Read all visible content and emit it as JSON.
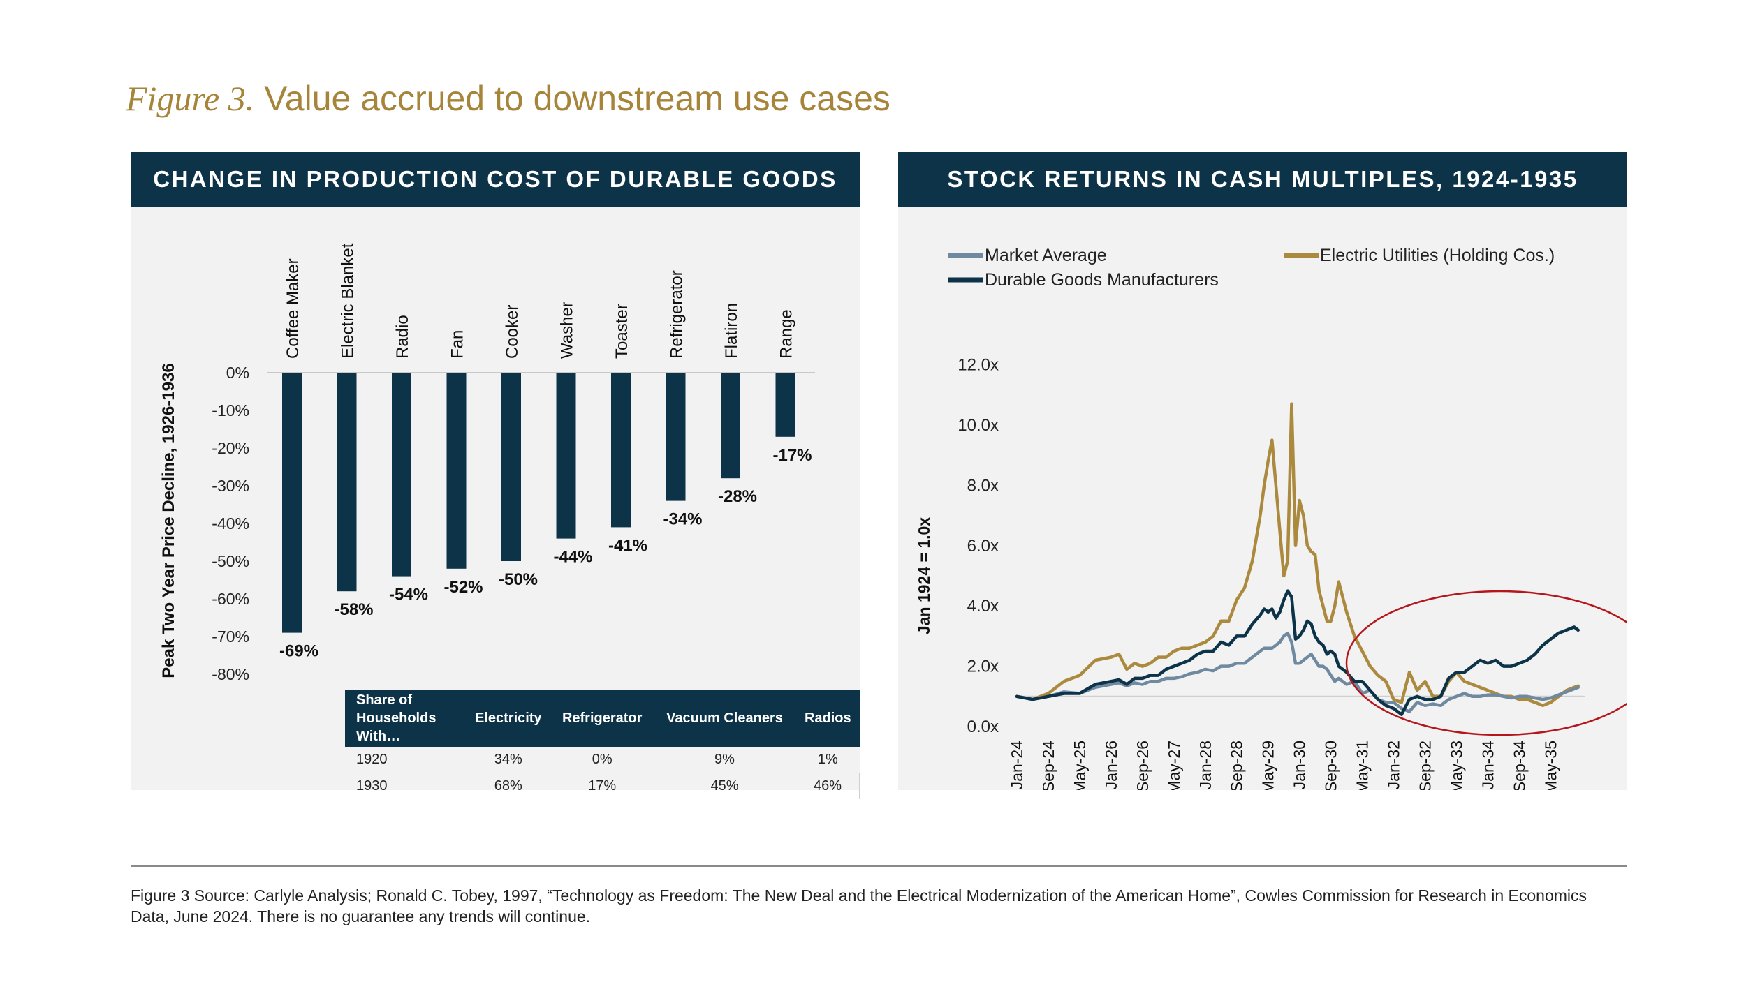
{
  "figure": {
    "number": "Figure 3.",
    "title": "Value accrued to downstream use cases"
  },
  "left_panel": {
    "header": "CHANGE IN PRODUCTION COST OF DURABLE GOODS"
  },
  "right_panel": {
    "header": "STOCK RETURNS IN CASH MULTIPLES, 1924-1935"
  },
  "chart_data": [
    {
      "type": "bar",
      "title": "CHANGE IN PRODUCTION COST OF DURABLE GOODS",
      "ylabel": "Peak Two Year Price Decline, 1926-1936",
      "xlabel": "",
      "categories": [
        "Coffee Maker",
        "Electric Blanket",
        "Radio",
        "Fan",
        "Cooker",
        "Washer",
        "Toaster",
        "Refrigerator",
        "Flatiron",
        "Range"
      ],
      "values": [
        -69,
        -58,
        -54,
        -52,
        -50,
        -44,
        -41,
        -34,
        -28,
        -17
      ],
      "value_labels": [
        "-69%",
        "-58%",
        "-54%",
        "-52%",
        "-50%",
        "-44%",
        "-41%",
        "-34%",
        "-28%",
        "-17%"
      ],
      "ylim": [
        -80,
        0
      ],
      "yticks": [
        "0%",
        "-10%",
        "-20%",
        "-30%",
        "-40%",
        "-50%",
        "-60%",
        "-70%",
        "-80%"
      ],
      "bar_color": "#0d3349",
      "grid": false
    },
    {
      "type": "line",
      "title": "STOCK RETURNS IN CASH MULTIPLES, 1924-1935",
      "ylabel": "Jan 1924 = 1.0x",
      "xlabel": "",
      "ylim": [
        0,
        12
      ],
      "yticks": [
        "0.0x",
        "2.0x",
        "4.0x",
        "6.0x",
        "8.0x",
        "10.0x",
        "12.0x"
      ],
      "x_months": [
        0,
        4,
        8,
        12,
        16,
        20,
        24,
        26,
        28,
        30,
        32,
        34,
        36,
        38,
        40,
        42,
        44,
        46,
        48,
        50,
        52,
        54,
        56,
        58,
        60,
        62,
        63,
        64,
        65,
        66,
        67,
        68,
        69,
        70,
        71,
        72,
        73,
        74,
        75,
        76,
        77,
        78,
        79,
        80,
        81,
        82,
        84,
        86,
        88,
        90,
        92,
        94,
        96,
        98,
        100,
        102,
        104,
        106,
        108,
        110,
        112,
        114,
        116,
        118,
        120,
        122,
        124,
        126,
        128,
        130,
        132,
        134,
        136,
        138,
        140,
        142,
        143
      ],
      "xticks": [
        {
          "label": "Jan-24",
          "month": 0
        },
        {
          "label": "Sep-24",
          "month": 8
        },
        {
          "label": "May-25",
          "month": 16
        },
        {
          "label": "Jan-26",
          "month": 24
        },
        {
          "label": "Sep-26",
          "month": 32
        },
        {
          "label": "May-27",
          "month": 40
        },
        {
          "label": "Jan-28",
          "month": 48
        },
        {
          "label": "Sep-28",
          "month": 56
        },
        {
          "label": "May-29",
          "month": 64
        },
        {
          "label": "Jan-30",
          "month": 72
        },
        {
          "label": "Sep-30",
          "month": 80
        },
        {
          "label": "May-31",
          "month": 88
        },
        {
          "label": "Jan-32",
          "month": 96
        },
        {
          "label": "Sep-32",
          "month": 104
        },
        {
          "label": "May-33",
          "month": 112
        },
        {
          "label": "Jan-34",
          "month": 120
        },
        {
          "label": "Sep-34",
          "month": 128
        },
        {
          "label": "May-35",
          "month": 136
        }
      ],
      "baseline": 1.0,
      "series": [
        {
          "name": "Market Average",
          "color": "#6f8aa0",
          "values": [
            1.0,
            0.9,
            1.0,
            1.15,
            1.1,
            1.3,
            1.4,
            1.45,
            1.35,
            1.45,
            1.4,
            1.5,
            1.5,
            1.6,
            1.6,
            1.65,
            1.75,
            1.8,
            1.9,
            1.85,
            2.0,
            2.0,
            2.1,
            2.1,
            2.3,
            2.5,
            2.6,
            2.6,
            2.6,
            2.7,
            2.8,
            3.0,
            3.1,
            2.8,
            2.1,
            2.1,
            2.2,
            2.3,
            2.4,
            2.2,
            2.0,
            2.0,
            1.9,
            1.7,
            1.5,
            1.6,
            1.4,
            1.5,
            1.1,
            1.2,
            0.9,
            0.8,
            0.8,
            0.6,
            0.5,
            0.8,
            0.7,
            0.75,
            0.7,
            0.9,
            1.0,
            1.1,
            1.0,
            1.0,
            1.05,
            1.05,
            1.0,
            0.95,
            1.0,
            1.0,
            0.95,
            0.9,
            0.95,
            1.05,
            1.15,
            1.25,
            1.3
          ]
        },
        {
          "name": "Electric Utilities (Holding Cos.)",
          "color": "#ab8a3e",
          "values": [
            1.0,
            0.9,
            1.1,
            1.5,
            1.7,
            2.2,
            2.3,
            2.4,
            1.9,
            2.1,
            2.0,
            2.1,
            2.3,
            2.3,
            2.5,
            2.6,
            2.6,
            2.7,
            2.8,
            3.0,
            3.5,
            3.5,
            4.2,
            4.6,
            5.5,
            7.0,
            8.0,
            8.8,
            9.5,
            8.0,
            6.5,
            5.0,
            5.5,
            10.7,
            6.0,
            7.5,
            7.0,
            6.0,
            5.8,
            5.7,
            4.5,
            4.0,
            3.5,
            3.5,
            4.0,
            4.8,
            3.8,
            3.0,
            2.5,
            2.0,
            1.7,
            1.5,
            0.9,
            0.8,
            1.8,
            1.2,
            1.5,
            1.0,
            1.0,
            1.5,
            1.8,
            1.5,
            1.4,
            1.3,
            1.2,
            1.1,
            1.0,
            1.0,
            0.9,
            0.9,
            0.8,
            0.7,
            0.8,
            1.0,
            1.2,
            1.3,
            1.35
          ]
        },
        {
          "name": "Durable Goods Manufacturers",
          "color": "#0d3349",
          "values": [
            1.0,
            0.9,
            1.0,
            1.1,
            1.1,
            1.4,
            1.5,
            1.55,
            1.4,
            1.6,
            1.6,
            1.7,
            1.7,
            1.9,
            2.0,
            2.1,
            2.2,
            2.4,
            2.5,
            2.5,
            2.8,
            2.7,
            3.0,
            3.0,
            3.4,
            3.7,
            3.9,
            3.8,
            3.9,
            3.6,
            3.8,
            4.2,
            4.5,
            4.3,
            2.9,
            3.0,
            3.2,
            3.5,
            3.4,
            3.0,
            2.8,
            2.7,
            2.4,
            2.5,
            2.4,
            2.0,
            1.8,
            1.5,
            1.5,
            1.2,
            0.9,
            0.7,
            0.6,
            0.4,
            0.9,
            1.0,
            0.9,
            0.9,
            1.0,
            1.6,
            1.8,
            1.8,
            2.0,
            2.2,
            2.1,
            2.2,
            2.0,
            2.0,
            2.1,
            2.2,
            2.4,
            2.7,
            2.9,
            3.1,
            3.2,
            3.3,
            3.2
          ]
        }
      ],
      "legend": "top",
      "annotation": "red circle highlighting 1933-1935",
      "grid": false
    }
  ],
  "households_table": {
    "header": [
      "Share of Households With…",
      "Electricity",
      "Refrigerator",
      "Vacuum Cleaners",
      "Radios"
    ],
    "rows": [
      {
        "year": "1920",
        "values": [
          "34%",
          "0%",
          "9%",
          "1%"
        ]
      },
      {
        "year": "1930",
        "values": [
          "68%",
          "17%",
          "45%",
          "46%"
        ]
      }
    ]
  },
  "source_note": "Figure 3 Source: Carlyle Analysis; Ronald C. Tobey, 1997, “Technology as Freedom: The New Deal and the Electrical Modernization of the American Home”, Cowles Commission for Research in Economics Data, June 2024. There is no guarantee any trends will continue."
}
